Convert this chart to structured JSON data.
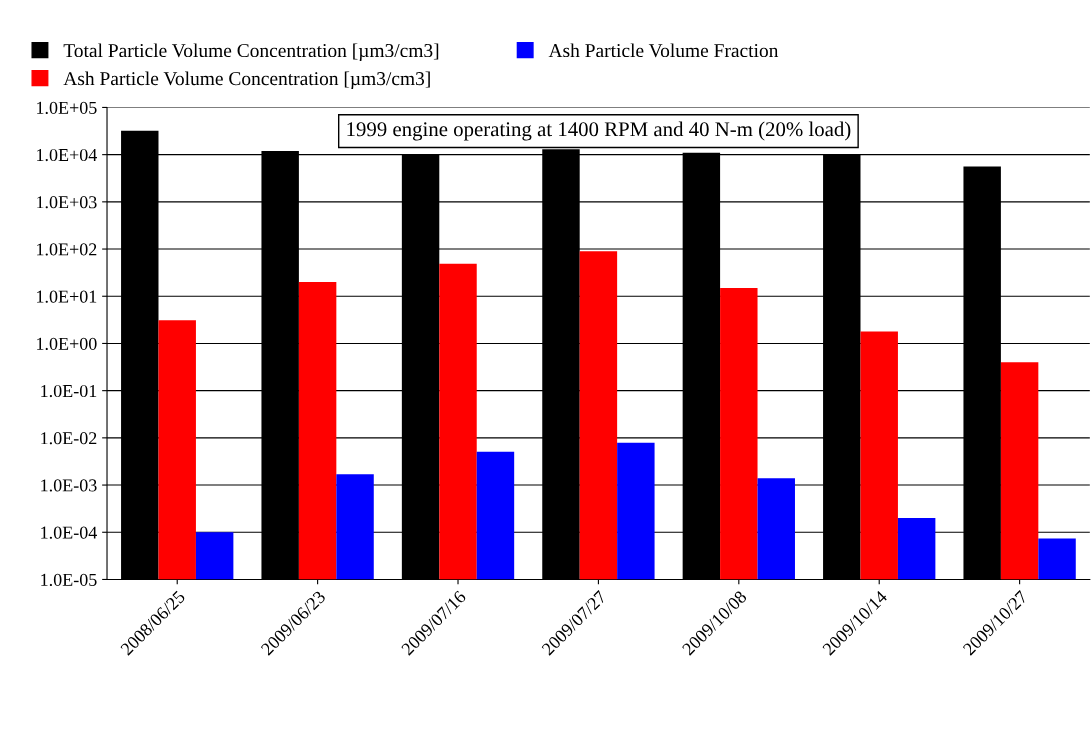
{
  "chart_data": {
    "type": "bar",
    "title": "1999 engine operating at 1400 RPM and 40 N-m (20% load)",
    "categories": [
      "2008/06/25",
      "2009/06/23",
      "2009/07/16",
      "2009/07/27",
      "2009/10/08",
      "2009/10/14",
      "2009/10/27"
    ],
    "series": [
      {
        "name": "Total Particle Volume Concentration [µm3/cm3]",
        "color": "#000000",
        "values": [
          32000,
          12000,
          10000,
          13000,
          11000,
          10000,
          5600
        ]
      },
      {
        "name": "Ash Particle Volume Concentration [µm3/cm3]",
        "color": "#ff0000",
        "values": [
          3.1,
          20,
          49,
          90,
          15,
          1.8,
          0.4
        ]
      },
      {
        "name": "Ash Particle Volume Fraction",
        "color": "#0000ff",
        "values": [
          0.0001,
          0.0017,
          0.0051,
          0.0079,
          0.0014,
          0.0002,
          7.4e-05
        ]
      }
    ],
    "log": "y",
    "ylim": [
      1e-05,
      100000
    ],
    "yticks": [
      {
        "value": 1e-05,
        "label": "1.0E-05"
      },
      {
        "value": 0.0001,
        "label": "1.0E-04"
      },
      {
        "value": 0.001,
        "label": "1.0E-03"
      },
      {
        "value": 0.01,
        "label": "1.0E-02"
      },
      {
        "value": 0.1,
        "label": "1.0E-01"
      },
      {
        "value": 1,
        "label": "1.0E+00"
      },
      {
        "value": 10,
        "label": "1.0E+01"
      },
      {
        "value": 100,
        "label": "1.0E+02"
      },
      {
        "value": 1000,
        "label": "1.0E+03"
      },
      {
        "value": 10000,
        "label": "1.0E+04"
      },
      {
        "value": 100000,
        "label": "1.0E+05"
      }
    ],
    "grid": "y",
    "legend": "top"
  }
}
